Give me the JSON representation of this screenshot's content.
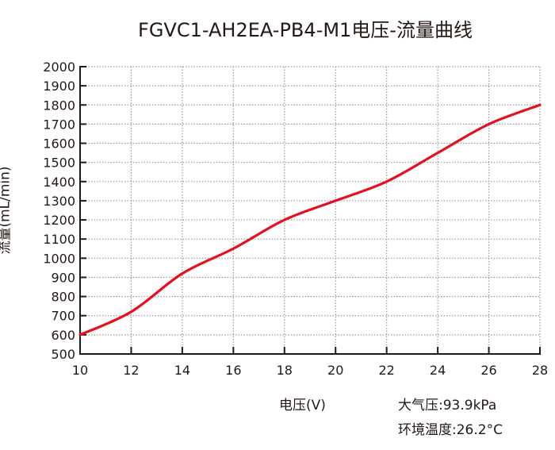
{
  "chart_data": {
    "type": "line",
    "title": "FGVC1-AH2EA-PB4-M1电压-流量曲线",
    "xlabel": "电压(V)",
    "ylabel": "流量(mL/min)",
    "xlim": [
      10,
      28
    ],
    "ylim": [
      500,
      2000
    ],
    "xticks": [
      10,
      12,
      14,
      16,
      18,
      20,
      22,
      24,
      26,
      28
    ],
    "yticks": [
      500,
      600,
      700,
      800,
      900,
      1000,
      1100,
      1200,
      1300,
      1400,
      1500,
      1600,
      1700,
      1800,
      1900,
      2000
    ],
    "grid": true,
    "x": [
      10,
      12,
      14,
      16,
      18,
      20,
      22,
      24,
      26,
      28
    ],
    "series": [
      {
        "values": [
          600,
          720,
          920,
          1050,
          1200,
          1300,
          1400,
          1550,
          1700,
          1800
        ],
        "color": "#e60f1e"
      }
    ],
    "annotations": [
      "大气压:93.9kPa",
      "环境温度:26.2°C"
    ]
  }
}
